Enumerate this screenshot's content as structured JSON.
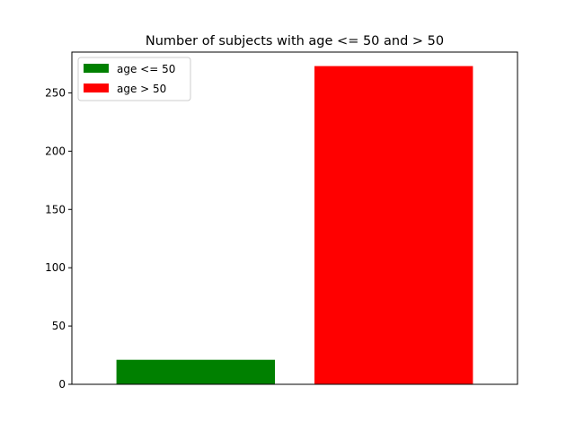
{
  "chart_data": {
    "type": "bar",
    "title": "Number of subjects with age <= 50 and > 50",
    "xlabel": "",
    "ylabel": "",
    "ylim": [
      0,
      285
    ],
    "yticks": [
      0,
      50,
      100,
      150,
      200,
      250
    ],
    "grid": false,
    "legend_position": "top-left",
    "series": [
      {
        "name": "age <= 50",
        "value": 21,
        "color": "#008000"
      },
      {
        "name": "age > 50",
        "value": 273,
        "color": "#ff0000"
      }
    ]
  }
}
